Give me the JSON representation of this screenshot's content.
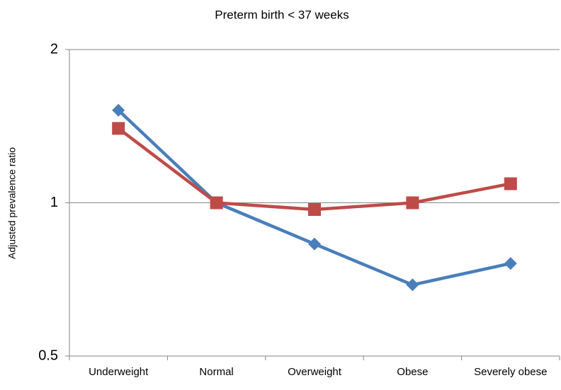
{
  "chart_data": {
    "type": "line",
    "title": "Preterm birth < 37 weeks",
    "y_label": "Adjusted prevalence ratio",
    "categories": [
      "Underweight",
      "Normal",
      "Overweight",
      "Obese",
      "Severely obese"
    ],
    "series": [
      {
        "color": "#4a7ebb",
        "marker": "diamond",
        "values": [
          1.52,
          1.0,
          0.83,
          0.69,
          0.76
        ]
      },
      {
        "color": "#be4b48",
        "marker": "square",
        "values": [
          1.4,
          1.0,
          0.97,
          1.0,
          1.09
        ]
      }
    ],
    "ylim": [
      0.5,
      2
    ],
    "yticks": [
      0.5,
      1,
      2
    ],
    "log_y": true,
    "grid": true
  }
}
